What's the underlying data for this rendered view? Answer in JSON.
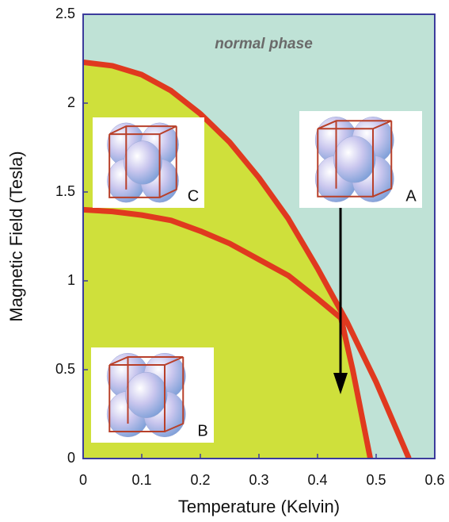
{
  "chart_data": {
    "type": "line",
    "xlabel": "Temperature (Kelvin)",
    "ylabel": "Magnetic Field (Tesla)",
    "annotation": "normal phase",
    "xlim": [
      0,
      0.6
    ],
    "xticks": [
      0,
      0.1,
      0.2,
      0.3,
      0.4,
      0.5,
      0.6
    ],
    "ylim": [
      0,
      2.5
    ],
    "yticks": [
      0,
      0.5,
      1,
      1.5,
      2,
      2.5
    ],
    "background_color": "#bfe2d6",
    "phase_color": "#cfe03b",
    "series": [
      {
        "color": "#e0391f",
        "x": [
          0,
          0.05,
          0.1,
          0.15,
          0.2,
          0.25,
          0.3,
          0.35,
          0.4,
          0.45,
          0.475,
          0.5,
          0.53,
          0.556
        ],
        "y": [
          2.23,
          2.21,
          2.16,
          2.07,
          1.94,
          1.78,
          1.58,
          1.35,
          1.07,
          0.77,
          0.6,
          0.43,
          0.2,
          0
        ]
      },
      {
        "color": "#e0391f",
        "x": [
          0,
          0.05,
          0.1,
          0.15,
          0.2,
          0.25,
          0.3,
          0.35,
          0.4,
          0.44,
          0.46,
          0.475,
          0.49
        ],
        "y": [
          1.4,
          1.39,
          1.37,
          1.34,
          1.28,
          1.21,
          1.12,
          1.03,
          0.9,
          0.79,
          0.5,
          0.25,
          0
        ]
      }
    ],
    "insets": [
      "C",
      "A",
      "B"
    ]
  }
}
